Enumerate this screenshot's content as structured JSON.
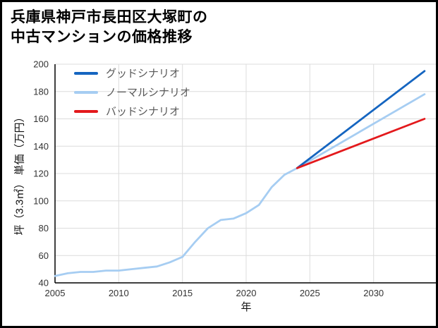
{
  "header": {
    "title_lines": [
      "兵庫県神戸市長田区大塚町の",
      "中古マンションの価格推移"
    ]
  },
  "chart_data": {
    "type": "line",
    "title": "兵庫県神戸市長田区大塚町の中古マンションの価格推移",
    "xlabel": "年",
    "ylabel": "坪（3.3㎡） 単価（万円）",
    "xlim": [
      2005,
      2035
    ],
    "ylim": [
      40,
      200
    ],
    "x_ticks": [
      2005,
      2010,
      2015,
      2020,
      2025,
      2030
    ],
    "y_ticks": [
      40,
      60,
      80,
      100,
      120,
      140,
      160,
      180,
      200
    ],
    "grid": true,
    "legend_position": "upper-left",
    "series": [
      {
        "name": "グッドシナリオ",
        "color": "#1565c0",
        "x": [
          2024,
          2034
        ],
        "y": [
          124,
          195
        ]
      },
      {
        "name": "ノーマルシナリオ",
        "color": "#a6cdf2",
        "x": [
          2005,
          2006,
          2007,
          2008,
          2009,
          2010,
          2011,
          2012,
          2013,
          2014,
          2015,
          2016,
          2017,
          2018,
          2019,
          2020,
          2021,
          2022,
          2023,
          2024,
          2034
        ],
        "y": [
          45,
          47,
          48,
          48,
          49,
          49,
          50,
          51,
          52,
          55,
          59,
          70,
          80,
          86,
          87,
          91,
          97,
          110,
          119,
          124,
          178
        ]
      },
      {
        "name": "バッドシナリオ",
        "color": "#e3191c",
        "x": [
          2024,
          2034
        ],
        "y": [
          124,
          160
        ]
      }
    ]
  }
}
